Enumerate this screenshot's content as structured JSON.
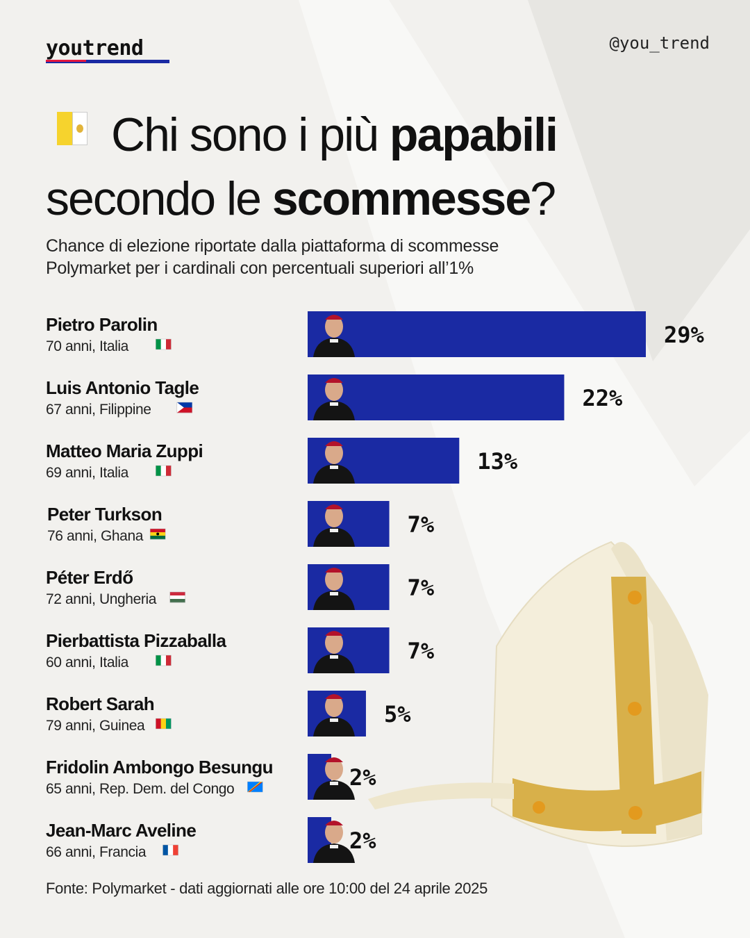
{
  "brand": {
    "logo": "youtrend",
    "handle": "@you_trend"
  },
  "header": {
    "title_part1": "Chi sono i più ",
    "title_bold1": "papabili",
    "title_part2": "secondo le ",
    "title_bold2": "scommesse",
    "title_end": "?",
    "title_icon": "vatican-flag-icon",
    "subtitle_line1": "Chance di elezione riportate dalla piattaforma di scommesse",
    "subtitle_line2": "Polymarket per i cardinali con percentuali superiori all’1%"
  },
  "colors": {
    "bar": "#1a2aa3",
    "accent_red": "#e5173f",
    "background": "#f2f1ee"
  },
  "chart_data": {
    "type": "bar",
    "orientation": "horizontal",
    "unit": "%",
    "categories": [
      "Pietro Parolin",
      "Luis Antonio Tagle",
      "Matteo Maria Zuppi",
      "Peter Turkson",
      "Péter Erdő",
      "Pierbattista Pizzaballa",
      "Robert Sarah",
      "Fridolin Ambongo Besungu",
      "Jean-Marc Aveline"
    ],
    "details": [
      "70 anni, Italia",
      "67 anni, Filippine",
      "69 anni, Italia",
      "76 anni, Ghana",
      "72 anni, Ungheria",
      "60 anni, Italia",
      "79 anni, Guinea",
      "65 anni, Rep. Dem. del Congo",
      "66 anni, Francia"
    ],
    "flags": [
      "italy-flag-icon",
      "philippines-flag-icon",
      "italy-flag-icon",
      "ghana-flag-icon",
      "hungary-flag-icon",
      "italy-flag-icon",
      "guinea-flag-icon",
      "dr-congo-flag-icon",
      "france-flag-icon"
    ],
    "values": [
      29,
      22,
      13,
      7,
      7,
      7,
      5,
      2,
      2
    ],
    "labels": [
      "29%",
      "22%",
      "13%",
      "7%",
      "7%",
      "7%",
      "5%",
      "2%",
      "2%"
    ],
    "xlim": [
      0,
      29
    ]
  },
  "footer": {
    "source": "Fonte: Polymarket - dati aggiornati alle ore 10:00 del 24 aprile 2025"
  }
}
